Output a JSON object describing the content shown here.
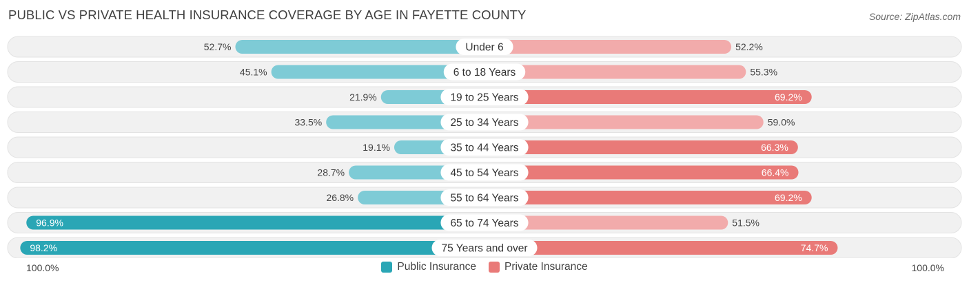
{
  "title": "PUBLIC VS PRIVATE HEALTH INSURANCE COVERAGE BY AGE IN FAYETTE COUNTY",
  "source": "Source: ZipAtlas.com",
  "axis": {
    "left_label": "100.0%",
    "right_label": "100.0%"
  },
  "legend": {
    "public_label": "Public Insurance",
    "private_label": "Private Insurance"
  },
  "colors": {
    "public_strong": "#2aa6b5",
    "public_light": "#7ecbd6",
    "private_strong": "#e97a78",
    "private_light": "#f2abab",
    "row_bg": "#f1f1f1"
  },
  "chart_data": {
    "type": "bar",
    "orientation": "horizontal-diverging",
    "title": "PUBLIC VS PRIVATE HEALTH INSURANCE COVERAGE BY AGE IN FAYETTE COUNTY",
    "xlim": [
      0,
      100
    ],
    "unit": "%",
    "legend_position": "bottom-center",
    "categories": [
      "Under 6",
      "6 to 18 Years",
      "19 to 25 Years",
      "25 to 34 Years",
      "35 to 44 Years",
      "45 to 54 Years",
      "55 to 64 Years",
      "65 to 74 Years",
      "75 Years and over"
    ],
    "series": [
      {
        "name": "Public Insurance",
        "values": [
          52.7,
          45.1,
          21.9,
          33.5,
          19.1,
          28.7,
          26.8,
          96.9,
          98.2
        ],
        "labels": [
          "52.7%",
          "45.1%",
          "21.9%",
          "33.5%",
          "19.1%",
          "28.7%",
          "26.8%",
          "96.9%",
          "98.2%"
        ]
      },
      {
        "name": "Private Insurance",
        "values": [
          52.2,
          55.3,
          69.2,
          59.0,
          66.3,
          66.4,
          69.2,
          51.5,
          74.7
        ],
        "labels": [
          "52.2%",
          "55.3%",
          "69.2%",
          "59.0%",
          "66.3%",
          "66.4%",
          "69.2%",
          "51.5%",
          "74.7%"
        ]
      }
    ]
  }
}
